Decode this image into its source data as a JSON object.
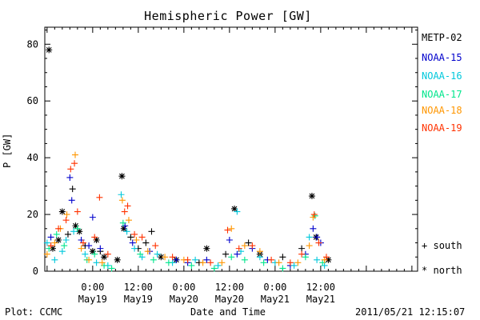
{
  "chart_data": {
    "type": "scatter",
    "title": "Hemispheric Power [GW]",
    "ylabel": "P [GW]",
    "xlabel": "Date and Time",
    "ylim": [
      0,
      86
    ],
    "y_ticks": [
      0,
      20,
      40,
      60,
      80
    ],
    "x_range_hours": [
      -12.6,
      85.5
    ],
    "x_ticks": [
      {
        "hours": 0,
        "top": "0:00",
        "bottom": "May19"
      },
      {
        "hours": 12,
        "top": "12:00",
        "bottom": "May19"
      },
      {
        "hours": 24,
        "top": "0:00",
        "bottom": "May20"
      },
      {
        "hours": 36,
        "top": "12:00",
        "bottom": "May20"
      },
      {
        "hours": 48,
        "top": "0:00",
        "bottom": "May21"
      },
      {
        "hours": 60,
        "top": "12:00",
        "bottom": "May21"
      }
    ],
    "series": [
      {
        "name": "METP-02",
        "color": "#000000",
        "points": [
          [
            -11.5,
            78,
            "north"
          ],
          [
            -10.5,
            8,
            "north"
          ],
          [
            -9,
            11,
            "north"
          ],
          [
            -8,
            21,
            "north"
          ],
          [
            -6.5,
            13,
            "south"
          ],
          [
            -5.3,
            29,
            "south"
          ],
          [
            -4.5,
            16,
            "north"
          ],
          [
            -3.5,
            14,
            "north"
          ],
          [
            -2,
            9,
            "south"
          ],
          [
            0,
            7,
            "north"
          ],
          [
            1,
            11,
            "north"
          ],
          [
            2,
            7,
            "south"
          ],
          [
            3,
            5,
            "north"
          ],
          [
            6.5,
            4,
            "north"
          ],
          [
            7.7,
            33.5,
            "north"
          ],
          [
            8.2,
            15,
            "north"
          ],
          [
            10,
            12,
            "south"
          ],
          [
            12,
            8,
            "south"
          ],
          [
            14,
            10,
            "south"
          ],
          [
            15.5,
            14,
            "south"
          ],
          [
            18,
            5,
            "north"
          ],
          [
            22,
            4,
            "north"
          ],
          [
            28,
            3,
            "south"
          ],
          [
            30,
            8,
            "north"
          ],
          [
            35,
            6,
            "south"
          ],
          [
            37.3,
            22,
            "north"
          ],
          [
            41,
            10,
            "south"
          ],
          [
            44,
            6,
            "north"
          ],
          [
            50,
            5,
            "south"
          ],
          [
            55,
            8,
            "south"
          ],
          [
            57.7,
            26.5,
            "north"
          ],
          [
            58.8,
            12,
            "north"
          ],
          [
            62,
            4,
            "north"
          ]
        ]
      },
      {
        "name": "NOAA-15",
        "color": "#0000cc",
        "points": [
          [
            -11,
            12,
            "south"
          ],
          [
            -6,
            33,
            "south"
          ],
          [
            -5.5,
            25,
            "south"
          ],
          [
            -3,
            11,
            "south"
          ],
          [
            -1,
            9,
            "south"
          ],
          [
            0,
            19,
            "south"
          ],
          [
            2,
            8,
            "south"
          ],
          [
            8.5,
            16,
            "south"
          ],
          [
            10.5,
            10,
            "south"
          ],
          [
            15,
            7,
            "south"
          ],
          [
            22,
            4,
            "south"
          ],
          [
            25,
            3,
            "south"
          ],
          [
            30,
            4,
            "south"
          ],
          [
            36,
            11,
            "south"
          ],
          [
            38,
            6,
            "south"
          ],
          [
            42,
            8,
            "south"
          ],
          [
            46,
            4,
            "south"
          ],
          [
            52,
            2,
            "south"
          ],
          [
            56,
            6,
            "south"
          ],
          [
            58,
            15,
            "south"
          ],
          [
            59,
            12,
            "south"
          ],
          [
            60,
            10,
            "south"
          ]
        ]
      },
      {
        "name": "NOAA-16",
        "color": "#00c8dc",
        "points": [
          [
            -12,
            10,
            "south"
          ],
          [
            -10,
            4,
            "south"
          ],
          [
            -8,
            7,
            "south"
          ],
          [
            -7,
            11,
            "south"
          ],
          [
            -5,
            14,
            "south"
          ],
          [
            -2,
            6,
            "south"
          ],
          [
            1,
            3,
            "south"
          ],
          [
            4,
            2,
            "south"
          ],
          [
            7.5,
            27,
            "south"
          ],
          [
            9,
            14,
            "south"
          ],
          [
            11,
            8,
            "south"
          ],
          [
            13,
            5,
            "south"
          ],
          [
            17,
            6,
            "south"
          ],
          [
            21,
            3,
            "south"
          ],
          [
            27,
            4,
            "south"
          ],
          [
            33,
            2,
            "south"
          ],
          [
            38,
            21,
            "south"
          ],
          [
            39,
            7,
            "south"
          ],
          [
            44,
            5,
            "south"
          ],
          [
            48,
            3,
            "south"
          ],
          [
            53,
            2,
            "south"
          ],
          [
            57,
            12,
            "south"
          ],
          [
            59,
            4,
            "south"
          ],
          [
            61,
            2,
            "south"
          ]
        ]
      },
      {
        "name": "NOAA-17",
        "color": "#00e68c",
        "points": [
          [
            -11.5,
            8,
            "south"
          ],
          [
            -9.5,
            13,
            "south"
          ],
          [
            -7.5,
            9,
            "south"
          ],
          [
            -4,
            15,
            "south"
          ],
          [
            -1.5,
            4,
            "south"
          ],
          [
            0.5,
            6,
            "south"
          ],
          [
            3,
            2,
            "south"
          ],
          [
            5,
            1,
            "south"
          ],
          [
            8,
            17,
            "south"
          ],
          [
            12.5,
            6,
            "south"
          ],
          [
            16,
            4,
            "south"
          ],
          [
            20,
            3,
            "south"
          ],
          [
            26,
            2,
            "south"
          ],
          [
            32,
            1,
            "south"
          ],
          [
            36.5,
            5,
            "south"
          ],
          [
            40,
            4,
            "south"
          ],
          [
            45,
            3,
            "south"
          ],
          [
            50,
            1,
            "south"
          ],
          [
            56,
            5,
            "south"
          ],
          [
            58.5,
            19.5,
            "south"
          ],
          [
            60.5,
            3,
            "south"
          ]
        ]
      },
      {
        "name": "NOAA-18",
        "color": "#ff9600",
        "points": [
          [
            -12,
            6,
            "south"
          ],
          [
            -10,
            10,
            "south"
          ],
          [
            -8.5,
            15,
            "south"
          ],
          [
            -6.8,
            20,
            "south"
          ],
          [
            -4.6,
            41,
            "south"
          ],
          [
            -3,
            8,
            "south"
          ],
          [
            -1,
            4,
            "south"
          ],
          [
            2.5,
            3,
            "south"
          ],
          [
            7.8,
            25,
            "south"
          ],
          [
            9.5,
            18,
            "south"
          ],
          [
            11.5,
            11,
            "south"
          ],
          [
            14.5,
            7,
            "south"
          ],
          [
            19,
            5,
            "south"
          ],
          [
            24,
            4,
            "south"
          ],
          [
            29,
            3,
            "south"
          ],
          [
            34,
            3,
            "south"
          ],
          [
            36.5,
            15,
            "south"
          ],
          [
            40,
            9,
            "south"
          ],
          [
            44,
            7,
            "south"
          ],
          [
            49,
            3,
            "south"
          ],
          [
            54,
            3,
            "south"
          ],
          [
            57,
            9,
            "south"
          ],
          [
            58,
            19,
            "south"
          ],
          [
            61,
            4,
            "south"
          ]
        ]
      },
      {
        "name": "NOAA-19",
        "color": "#ff3200",
        "points": [
          [
            -11,
            9,
            "south"
          ],
          [
            -9,
            15,
            "south"
          ],
          [
            -7,
            18,
            "south"
          ],
          [
            -5.8,
            36,
            "south"
          ],
          [
            -4.8,
            38,
            "south"
          ],
          [
            -4,
            21,
            "south"
          ],
          [
            -2.5,
            10,
            "south"
          ],
          [
            0.5,
            12,
            "south"
          ],
          [
            1.8,
            26,
            "south"
          ],
          [
            4,
            6,
            "south"
          ],
          [
            8.4,
            21,
            "south"
          ],
          [
            9.2,
            23,
            "south"
          ],
          [
            11,
            13,
            "south"
          ],
          [
            13,
            12,
            "south"
          ],
          [
            16.5,
            9,
            "south"
          ],
          [
            21,
            5,
            "south"
          ],
          [
            25,
            4,
            "south"
          ],
          [
            31,
            3,
            "south"
          ],
          [
            35.5,
            14.5,
            "south"
          ],
          [
            38.5,
            8,
            "south"
          ],
          [
            42,
            9,
            "south"
          ],
          [
            47,
            4,
            "south"
          ],
          [
            52,
            3,
            "south"
          ],
          [
            55,
            6,
            "south"
          ],
          [
            58.3,
            20,
            "south"
          ],
          [
            59.5,
            10,
            "south"
          ],
          [
            61.5,
            5,
            "south"
          ]
        ]
      }
    ]
  },
  "legend_markers": [
    {
      "symbol": "+",
      "label": "south"
    },
    {
      "symbol": "*",
      "label": "north"
    }
  ],
  "footer": {
    "plot_credit": "Plot: CCMC",
    "timestamp": "2011/05/21 12:15:07"
  }
}
